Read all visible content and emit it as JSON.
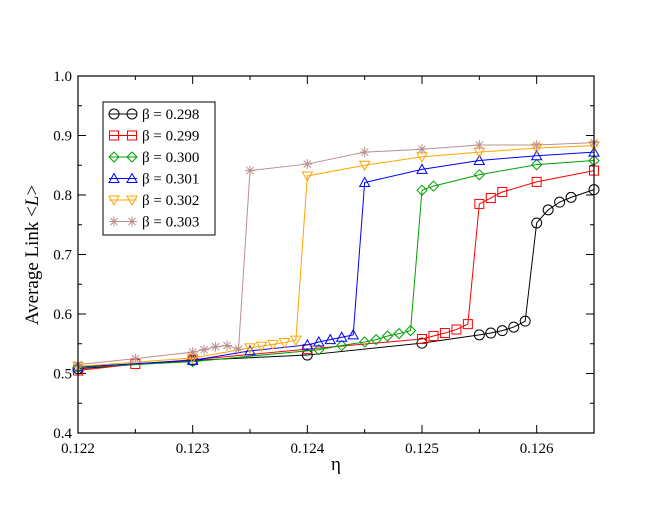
{
  "chart_data": {
    "type": "line",
    "title": "",
    "xlabel": "η",
    "ylabel_prefix": "Average Link <",
    "ylabel_var": "L",
    "ylabel_suffix": ">",
    "xlim": [
      0.122,
      0.1265
    ],
    "ylim": [
      0.4,
      1.0
    ],
    "xticks": [
      {
        "value": 0.122,
        "label": "0.122"
      },
      {
        "value": 0.123,
        "label": "0.123"
      },
      {
        "value": 0.124,
        "label": "0.124"
      },
      {
        "value": 0.125,
        "label": "0.125"
      },
      {
        "value": 0.126,
        "label": "0.126"
      }
    ],
    "yticks": [
      {
        "value": 0.4,
        "label": "0.4"
      },
      {
        "value": 0.5,
        "label": "0.5"
      },
      {
        "value": 0.6,
        "label": "0.6"
      },
      {
        "value": 0.7,
        "label": "0.7"
      },
      {
        "value": 0.8,
        "label": "0.8"
      },
      {
        "value": 0.9,
        "label": "0.9"
      },
      {
        "value": 1.0,
        "label": "1.0"
      }
    ],
    "grid": false,
    "legend_position": "top-left",
    "series": [
      {
        "name": "β = 0.298",
        "color": "#000000",
        "marker": "circle",
        "x": [
          0.122,
          0.123,
          0.124,
          0.125,
          0.1255,
          0.1256,
          0.1257,
          0.1258,
          0.1259,
          0.126,
          0.1261,
          0.1262,
          0.1263,
          0.1265
        ],
        "y": [
          0.508,
          0.522,
          0.531,
          0.551,
          0.565,
          0.568,
          0.572,
          0.578,
          0.588,
          0.753,
          0.775,
          0.788,
          0.796,
          0.809
        ]
      },
      {
        "name": "β = 0.299",
        "color": "#ff0000",
        "marker": "square",
        "x": [
          0.122,
          0.1225,
          0.123,
          0.124,
          0.125,
          0.1251,
          0.1252,
          0.1253,
          0.1254,
          0.1255,
          0.1256,
          0.1257,
          0.126,
          0.1265
        ],
        "y": [
          0.505,
          0.516,
          0.523,
          0.541,
          0.558,
          0.563,
          0.568,
          0.574,
          0.583,
          0.785,
          0.795,
          0.805,
          0.822,
          0.841
        ]
      },
      {
        "name": "β = 0.300",
        "color": "#00a000",
        "marker": "diamond",
        "x": [
          0.122,
          0.123,
          0.1241,
          0.1243,
          0.1245,
          0.1246,
          0.1247,
          0.1248,
          0.1249,
          0.125,
          0.1251,
          0.1255,
          0.126,
          0.1265
        ],
        "y": [
          0.51,
          0.52,
          0.54,
          0.547,
          0.553,
          0.557,
          0.563,
          0.567,
          0.572,
          0.808,
          0.815,
          0.834,
          0.851,
          0.858
        ]
      },
      {
        "name": "β = 0.301",
        "color": "#0000ff",
        "marker": "triangle-up",
        "x": [
          0.122,
          0.123,
          0.1235,
          0.124,
          0.1241,
          0.1242,
          0.1243,
          0.1244,
          0.1245,
          0.125,
          0.1255,
          0.126,
          0.1265
        ],
        "y": [
          0.511,
          0.522,
          0.538,
          0.548,
          0.553,
          0.557,
          0.561,
          0.565,
          0.821,
          0.843,
          0.858,
          0.866,
          0.872
        ]
      },
      {
        "name": "β = 0.302",
        "color": "#ffa500",
        "marker": "triangle-down",
        "x": [
          0.122,
          0.123,
          0.1235,
          0.1236,
          0.1237,
          0.1238,
          0.1239,
          0.124,
          0.1245,
          0.125,
          0.1255,
          0.126,
          0.1265
        ],
        "y": [
          0.512,
          0.526,
          0.543,
          0.546,
          0.549,
          0.552,
          0.556,
          0.832,
          0.85,
          0.864,
          0.872,
          0.879,
          0.883
        ]
      },
      {
        "name": "β = 0.303",
        "color": "#bc8f8f",
        "marker": "star",
        "x": [
          0.122,
          0.1225,
          0.123,
          0.1231,
          0.1232,
          0.1233,
          0.1234,
          0.1235,
          0.124,
          0.1245,
          0.125,
          0.1255,
          0.126,
          0.1265
        ],
        "y": [
          0.515,
          0.525,
          0.536,
          0.54,
          0.545,
          0.547,
          0.541,
          0.841,
          0.852,
          0.872,
          0.877,
          0.884,
          0.884,
          0.888
        ]
      }
    ]
  }
}
